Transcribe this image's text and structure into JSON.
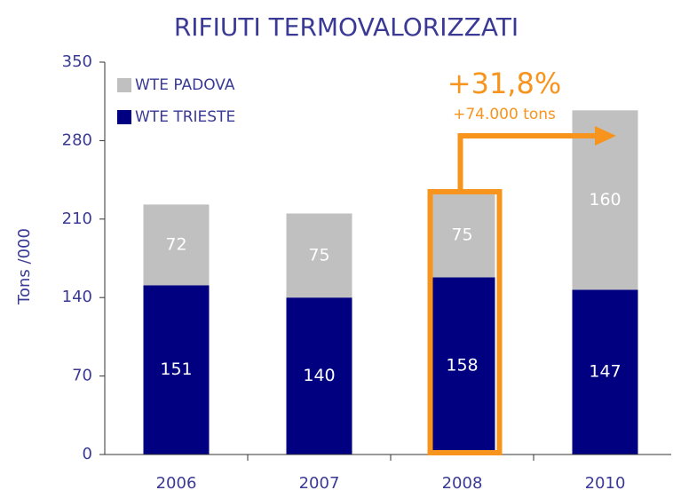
{
  "chart_data": {
    "type": "stacked_bar",
    "title": "RIFIUTI TERMOVALORIZZATI",
    "ylabel": "Tons /000",
    "categories": [
      "2006",
      "2007",
      "2008",
      "2010"
    ],
    "series": [
      {
        "name": "WTE TRIESTE",
        "color": "#000080",
        "values": [
          151,
          140,
          158,
          147
        ]
      },
      {
        "name": "WTE PADOVA",
        "color": "#c0c0c0",
        "values": [
          72,
          75,
          75,
          160
        ]
      }
    ],
    "ylim": [
      0,
      350
    ],
    "yticks": [
      0,
      70,
      140,
      210,
      280,
      350
    ],
    "annotations": [
      "+31,8%",
      "+74.000 tons"
    ]
  }
}
